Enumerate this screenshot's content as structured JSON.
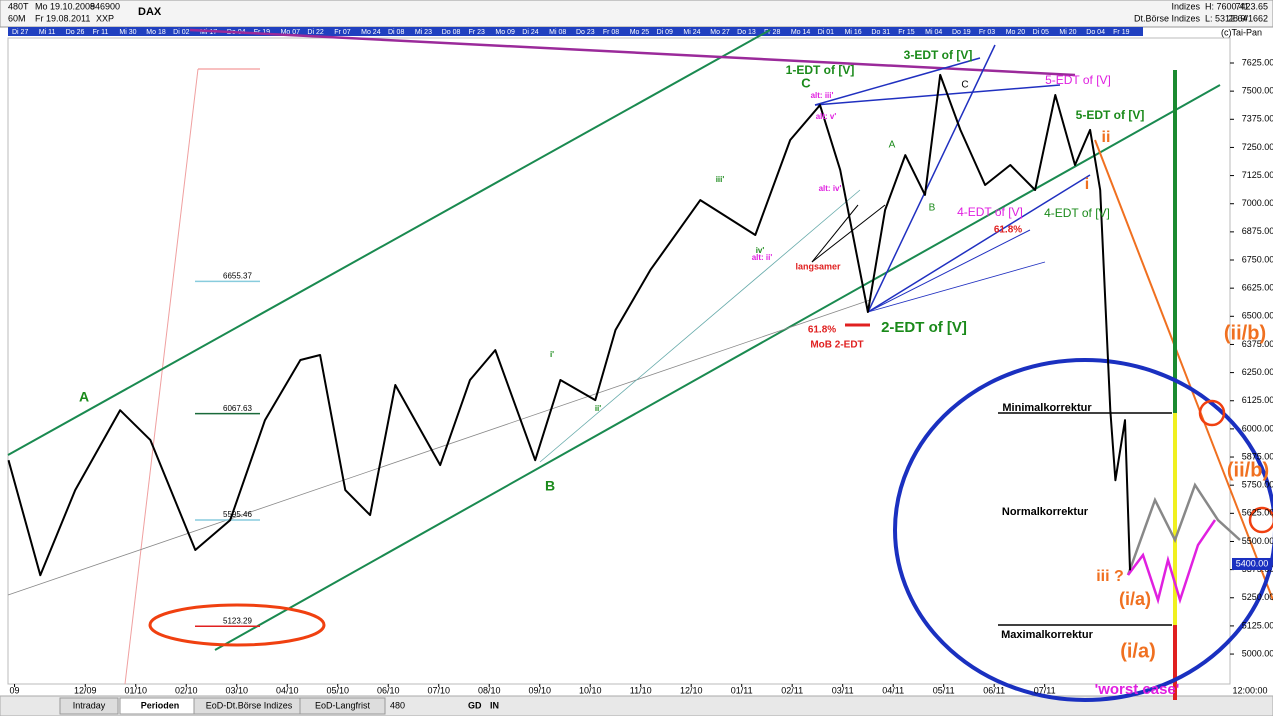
{
  "header": {
    "left": [
      "480T",
      "Mo 19.10.2009",
      "846900",
      "60M",
      "Fr 19.08.2011",
      "XXP"
    ],
    "symbol": "DAX",
    "right_labels": [
      "Indizes",
      "Dt.Börse Indizes"
    ],
    "right_values": [
      "H: 7600.41",
      "L: 5312.64",
      "7423.65",
      "28.9/1662"
    ],
    "copyright": "(c)Tai-Pan"
  },
  "date_strip": [
    "Di 27",
    "Mi 11",
    "Do 26",
    "Fr 11",
    "Mi 30",
    "Mo 18",
    "Di 02",
    "Mi 17",
    "Do 04",
    "Fr 19",
    "Mo 07",
    "Di 22",
    "Fr 07",
    "Mo 24",
    "Di 08",
    "Mi 23",
    "Do 08",
    "Fr 23",
    "Mo 09",
    "Di 24",
    "Mi 08",
    "Do 23",
    "Fr 08",
    "Mo 25",
    "Di 09",
    "Mi 24",
    "Mo 27",
    "Do 13",
    "Fr 28",
    "Mo 14",
    "Di 01",
    "Mi 16",
    "Do 31",
    "Fr 15",
    "Mi 04",
    "Do 19",
    "Fr 03",
    "Mo 20",
    "Di 05",
    "Mi 20",
    "Do 04",
    "Fr 19"
  ],
  "toolbar": {
    "tabs": [
      "Intraday",
      "Perioden",
      "EoD-Dt.Börse Indizes",
      "EoD-Langfrist"
    ],
    "period": "480",
    "buttons": [
      "GD",
      "IN"
    ]
  },
  "chart_data": {
    "type": "line",
    "title": "DAX",
    "x": [
      0.48,
      1.11,
      1.8,
      2.69,
      3.29,
      4.18,
      4.87,
      5.56,
      6.26,
      6.65,
      7.15,
      7.64,
      8.14,
      9.03,
      9.62,
      10.12,
      10.91,
      11.41,
      12.1,
      12.5,
      13.19,
      14.18,
      15.27,
      15.96,
      16.55,
      16.95,
      17.5,
      17.84,
      18.24,
      18.63,
      18.93,
      19.33,
      19.82,
      20.32,
      20.81,
      21.21,
      21.6,
      21.9,
      22.1,
      22.3,
      22.4,
      22.59,
      22.69
    ],
    "series": [
      {
        "name": "DAX",
        "color": "#000000",
        "values": [
          5861,
          5350,
          5728,
          6083,
          5950,
          5462,
          5595,
          6039,
          6306,
          6328,
          5728,
          5617,
          6195,
          5839,
          6217,
          6350,
          5861,
          6217,
          6128,
          6439,
          6705,
          7016,
          6861,
          7283,
          7438,
          7150,
          6519,
          6972,
          7216,
          7039,
          7572,
          7328,
          7083,
          7172,
          7061,
          7483,
          7172,
          7328,
          7061,
          6083,
          5772,
          6039,
          5372
        ]
      }
    ],
    "xlim": [
      0.47,
      24.67
    ],
    "xticks": [
      {
        "value": 0.6,
        "label": "09"
      },
      {
        "value": 2,
        "label": "12/09"
      },
      {
        "value": 3,
        "label": "01/10"
      },
      {
        "value": 4,
        "label": "02/10"
      },
      {
        "value": 5,
        "label": "03/10"
      },
      {
        "value": 6,
        "label": "04/10"
      },
      {
        "value": 7,
        "label": "05/10"
      },
      {
        "value": 8,
        "label": "06/10"
      },
      {
        "value": 9,
        "label": "07/10"
      },
      {
        "value": 10,
        "label": "08/10"
      },
      {
        "value": 11,
        "label": "09/10"
      },
      {
        "value": 12,
        "label": "10/10"
      },
      {
        "value": 13,
        "label": "11/10"
      },
      {
        "value": 14,
        "label": "12/10"
      },
      {
        "value": 15,
        "label": "01/11"
      },
      {
        "value": 16,
        "label": "02/11"
      },
      {
        "value": 17,
        "label": "03/11"
      },
      {
        "value": 18,
        "label": "04/11"
      },
      {
        "value": 19,
        "label": "05/11"
      },
      {
        "value": 20,
        "label": "06/11"
      },
      {
        "value": 21,
        "label": "07/11"
      }
    ],
    "ylim": [
      4867,
      7736
    ],
    "yticks": [
      {
        "value": 5000,
        "label": "5000.00"
      },
      {
        "value": 5125,
        "label": "5125.00"
      },
      {
        "value": 5250,
        "label": "5250.00"
      },
      {
        "value": 5375,
        "label": "5375.00"
      },
      {
        "value": 5500,
        "label": "5500.00"
      },
      {
        "value": 5625,
        "label": "5625.00"
      },
      {
        "value": 5750,
        "label": "5750.00"
      },
      {
        "value": 5875,
        "label": "5875.00"
      },
      {
        "value": 6000,
        "label": "6000.00"
      },
      {
        "value": 6125,
        "label": "6125.00"
      },
      {
        "value": 6250,
        "label": "6250.00"
      },
      {
        "value": 6375,
        "label": "6375.00"
      },
      {
        "value": 6500,
        "label": "6500.00"
      },
      {
        "value": 6625,
        "label": "6625.00"
      },
      {
        "value": 6750,
        "label": "6750.00"
      },
      {
        "value": 6875,
        "label": "6875.00"
      },
      {
        "value": 7000,
        "label": "7000.00"
      },
      {
        "value": 7125,
        "label": "7125.00"
      },
      {
        "value": 7250,
        "label": "7250.00"
      },
      {
        "value": 7375,
        "label": "7375.00"
      },
      {
        "value": 7500,
        "label": "7500.00"
      },
      {
        "value": 7625,
        "label": "7625.00"
      }
    ],
    "time_label": "12:00:00",
    "last_price": {
      "value": 5400,
      "label": "5400.00"
    },
    "levels": [
      6655.37,
      6067.63,
      5595.46,
      5123.29
    ],
    "annotations": [
      {
        "text": "A",
        "color": "#1a8a1a"
      },
      {
        "text": "B",
        "color": "#1a8a1a"
      },
      {
        "text": "C",
        "color": "#1a8a1a"
      },
      {
        "text": "1-EDT of [V]",
        "color": "#1a8a1a"
      },
      {
        "text": "3-EDT of [V]",
        "color": "#1a8a1a"
      },
      {
        "text": "5-EDT of [V]",
        "color": "#e020e0"
      },
      {
        "text": "5-EDT of [V]",
        "color": "#1a8a1a"
      },
      {
        "text": "4-EDT of [V]",
        "color": "#e020e0"
      },
      {
        "text": "4-EDT of [V]",
        "color": "#1a8a1a"
      },
      {
        "text": "2-EDT of [V]",
        "color": "#1a8a1a"
      },
      {
        "text": "61.8%",
        "color": "#e02020"
      },
      {
        "text": "MoB 2-EDT",
        "color": "#e02020"
      },
      {
        "text": "61.8%",
        "color": "#e02020"
      },
      {
        "text": "langsamer",
        "color": "#e02020"
      },
      {
        "text": "alt: iii'",
        "color": "#e020e0"
      },
      {
        "text": "alt: v'",
        "color": "#e020e0"
      },
      {
        "text": "alt: iv'",
        "color": "#e020e0"
      },
      {
        "text": "iii'",
        "color": "#1a8a1a"
      },
      {
        "text": "iv'",
        "color": "#1a8a1a"
      },
      {
        "text": "alt: ii'",
        "color": "#e020e0"
      },
      {
        "text": "i'",
        "color": "#1a8a1a"
      },
      {
        "text": "ii'",
        "color": "#1a8a1a"
      },
      {
        "text": "A",
        "color": "#1a8a1a"
      },
      {
        "text": "B",
        "color": "#1a8a1a"
      },
      {
        "text": "C",
        "color": "#000000"
      },
      {
        "text": "ii",
        "color": "#f07020"
      },
      {
        "text": "i",
        "color": "#f07020"
      },
      {
        "text": "(ii/b)",
        "color": "#f07020"
      },
      {
        "text": "(ii/b)",
        "color": "#f07020"
      },
      {
        "text": "iii ?",
        "color": "#f07020"
      },
      {
        "text": "(i/a)",
        "color": "#f07020"
      },
      {
        "text": "(i/a)",
        "color": "#f07020"
      },
      {
        "text": "Minimalkorrektur",
        "color": "#000000"
      },
      {
        "text": "Normalkorrektur",
        "color": "#000000"
      },
      {
        "text": "Maximalkorrektur",
        "color": "#000000"
      },
      {
        "text": "'worst case'",
        "color": "#e020e0"
      }
    ]
  }
}
